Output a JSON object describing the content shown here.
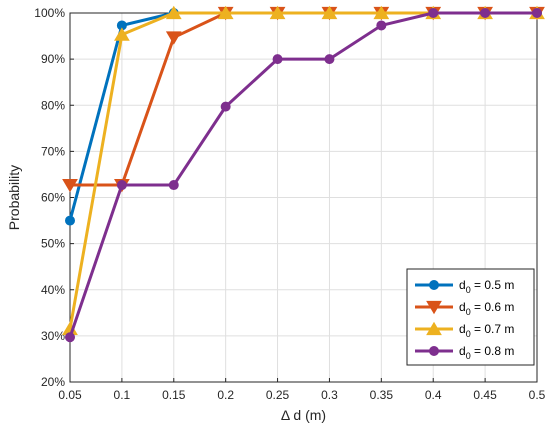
{
  "chart_data": {
    "type": "line",
    "title": "",
    "xlabel": "Δ d (m)",
    "ylabel": "Probability",
    "x": [
      0.05,
      0.1,
      0.15,
      0.2,
      0.25,
      0.3,
      0.35,
      0.4,
      0.45,
      0.5
    ],
    "x_tick_labels": [
      "0.05",
      "0.1",
      "0.15",
      "0.2",
      "0.25",
      "0.3",
      "0.35",
      "0.4",
      "0.45",
      "0.5"
    ],
    "y_tick_labels": [
      "20%",
      "30%",
      "40%",
      "50%",
      "60%",
      "70%",
      "80%",
      "90%",
      "100%"
    ],
    "xlim": [
      0.05,
      0.5
    ],
    "ylim": [
      20,
      100
    ],
    "y_unit": "%",
    "grid": true,
    "legend_position": "bottom-right",
    "series": [
      {
        "name_main": "d",
        "name_sub": "0",
        "name_rest": " = 0.5 m",
        "color": "#0072BD",
        "marker": "circle",
        "values": [
          55,
          97.3,
          100,
          100,
          100,
          100,
          100,
          100,
          100,
          100
        ]
      },
      {
        "name_main": "d",
        "name_sub": "0",
        "name_rest": " = 0.6 m",
        "color": "#D95319",
        "marker": "triangle-down",
        "values": [
          62.7,
          62.7,
          94.7,
          100,
          100,
          100,
          100,
          100,
          100,
          100
        ]
      },
      {
        "name_main": "d",
        "name_sub": "0",
        "name_rest": " = 0.7 m",
        "color": "#EDB120",
        "marker": "triangle-up",
        "values": [
          31.5,
          95.3,
          100,
          100,
          100,
          100,
          100,
          100,
          100,
          100
        ]
      },
      {
        "name_main": "d",
        "name_sub": "0",
        "name_rest": " = 0.8 m",
        "color": "#7E2F8E",
        "marker": "circle",
        "values": [
          29.7,
          62.7,
          62.7,
          79.7,
          90,
          90,
          97.3,
          100,
          100,
          100
        ]
      }
    ]
  }
}
